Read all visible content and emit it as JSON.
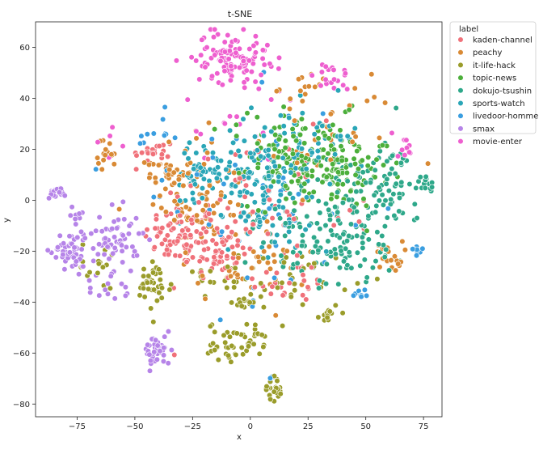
{
  "chart_data": {
    "type": "scatter",
    "title": "t-SNE",
    "xlabel": "x",
    "ylabel": "y",
    "xlim": [
      -93,
      83
    ],
    "ylim": [
      -85,
      70
    ],
    "xticks": [
      -75,
      -50,
      -25,
      0,
      25,
      50,
      75
    ],
    "yticks": [
      -80,
      -60,
      -40,
      -20,
      0,
      20,
      40,
      60
    ],
    "grid": false,
    "legend": {
      "title": "label",
      "placement": "outside-top-right"
    },
    "series": [
      {
        "name": "kaden-channel",
        "color": "#f0717a",
        "clusters": [
          {
            "cx": -30,
            "cy": -14,
            "sx": 8,
            "sy": 6,
            "n": 70
          },
          {
            "cx": -14,
            "cy": -20,
            "sx": 6,
            "sy": 6,
            "n": 50
          },
          {
            "cx": -42,
            "cy": 18,
            "sx": 5,
            "sy": 3,
            "n": 22
          },
          {
            "cx": 18,
            "cy": -32,
            "sx": 8,
            "sy": 4,
            "n": 25
          },
          {
            "cx": -5,
            "cy": -2,
            "sx": 18,
            "sy": 14,
            "n": 50
          },
          {
            "cx": 15,
            "cy": -5,
            "sx": 20,
            "sy": 15,
            "n": 25
          }
        ]
      },
      {
        "name": "peachy",
        "color": "#d98a35",
        "clusters": [
          {
            "cx": -35,
            "cy": 10,
            "sx": 5,
            "sy": 4,
            "n": 35
          },
          {
            "cx": -22,
            "cy": -2,
            "sx": 8,
            "sy": 8,
            "n": 45
          },
          {
            "cx": -62,
            "cy": 18,
            "sx": 2,
            "sy": 3,
            "n": 18
          },
          {
            "cx": 60,
            "cy": -22,
            "sx": 3,
            "sy": 3,
            "n": 20
          },
          {
            "cx": 0,
            "cy": -28,
            "sx": 12,
            "sy": 6,
            "n": 35
          },
          {
            "cx": 35,
            "cy": 28,
            "sx": 15,
            "sy": 12,
            "n": 30
          },
          {
            "cx": 25,
            "cy": 44,
            "sx": 6,
            "sy": 3,
            "n": 12
          },
          {
            "cx": -10,
            "cy": 5,
            "sx": 20,
            "sy": 12,
            "n": 40
          }
        ]
      },
      {
        "name": "it-life-hack",
        "color": "#9a9c2a",
        "clusters": [
          {
            "cx": -42,
            "cy": -34,
            "sx": 4,
            "sy": 5,
            "n": 40
          },
          {
            "cx": -10,
            "cy": -56,
            "sx": 4,
            "sy": 4,
            "n": 30
          },
          {
            "cx": 0,
            "cy": -55,
            "sx": 3,
            "sy": 3,
            "n": 22
          },
          {
            "cx": 10,
            "cy": -74,
            "sx": 2,
            "sy": 2.5,
            "n": 25
          },
          {
            "cx": 34,
            "cy": -44,
            "sx": 2,
            "sy": 2,
            "n": 12
          },
          {
            "cx": 0,
            "cy": -40,
            "sx": 4,
            "sy": 2,
            "n": 15
          },
          {
            "cx": 20,
            "cy": -30,
            "sx": 12,
            "sy": 5,
            "n": 30
          },
          {
            "cx": -65,
            "cy": -25,
            "sx": 4,
            "sy": 5,
            "n": 15
          },
          {
            "cx": -20,
            "cy": -33,
            "sx": 10,
            "sy": 4,
            "n": 20
          }
        ]
      },
      {
        "name": "topic-news",
        "color": "#4caf3b",
        "clusters": [
          {
            "cx": 30,
            "cy": 15,
            "sx": 15,
            "sy": 9,
            "n": 130
          },
          {
            "cx": 10,
            "cy": 20,
            "sx": 10,
            "sy": 8,
            "n": 40
          },
          {
            "cx": 40,
            "cy": 10,
            "sx": 8,
            "sy": 6,
            "n": 30
          }
        ]
      },
      {
        "name": "dokujo-tsushin",
        "color": "#2ea88a",
        "clusters": [
          {
            "cx": 40,
            "cy": -5,
            "sx": 14,
            "sy": 12,
            "n": 110
          },
          {
            "cx": 25,
            "cy": -20,
            "sx": 12,
            "sy": 8,
            "n": 50
          },
          {
            "cx": 62,
            "cy": 10,
            "sx": 6,
            "sy": 6,
            "n": 40
          },
          {
            "cx": 76,
            "cy": 6,
            "sx": 2,
            "sy": 2,
            "n": 15
          },
          {
            "cx": 55,
            "cy": -15,
            "sx": 8,
            "sy": 8,
            "n": 30
          }
        ]
      },
      {
        "name": "sports-watch",
        "color": "#2aa6b7",
        "clusters": [
          {
            "cx": 0,
            "cy": 10,
            "sx": 15,
            "sy": 8,
            "n": 120
          },
          {
            "cx": 25,
            "cy": 25,
            "sx": 12,
            "sy": 7,
            "n": 50
          },
          {
            "cx": -20,
            "cy": 12,
            "sx": 6,
            "sy": 5,
            "n": 30
          },
          {
            "cx": 10,
            "cy": -10,
            "sx": 10,
            "sy": 8,
            "n": 30
          }
        ]
      },
      {
        "name": "livedoor-homme",
        "color": "#3a9ee0",
        "clusters": [
          {
            "cx": 0,
            "cy": 0,
            "sx": 30,
            "sy": 20,
            "n": 50
          },
          {
            "cx": 71,
            "cy": -20,
            "sx": 2,
            "sy": 1.5,
            "n": 10
          },
          {
            "cx": 48,
            "cy": -37,
            "sx": 2,
            "sy": 1,
            "n": 8
          },
          {
            "cx": -40,
            "cy": 25,
            "sx": 5,
            "sy": 3,
            "n": 8
          },
          {
            "cx": 10,
            "cy": -69,
            "sx": 1,
            "sy": 0.5,
            "n": 3
          }
        ]
      },
      {
        "name": "smax",
        "color": "#b684e8",
        "clusters": [
          {
            "cx": -78,
            "cy": -20,
            "sx": 4,
            "sy": 4,
            "n": 55
          },
          {
            "cx": -58,
            "cy": -15,
            "sx": 5,
            "sy": 6,
            "n": 60
          },
          {
            "cx": -40,
            "cy": -59,
            "sx": 3,
            "sy": 3,
            "n": 45
          },
          {
            "cx": -84,
            "cy": 3,
            "sx": 2,
            "sy": 1,
            "n": 18
          },
          {
            "cx": -60,
            "cy": -35,
            "sx": 5,
            "sy": 4,
            "n": 15
          },
          {
            "cx": -75,
            "cy": -5,
            "sx": 3,
            "sy": 3,
            "n": 8
          }
        ]
      },
      {
        "name": "movie-enter",
        "color": "#ee5fcf",
        "clusters": [
          {
            "cx": -8,
            "cy": 56,
            "sx": 8,
            "sy": 5,
            "n": 110
          },
          {
            "cx": 35,
            "cy": 48,
            "sx": 4,
            "sy": 3,
            "n": 20
          },
          {
            "cx": 65,
            "cy": 22,
            "sx": 3,
            "sy": 3,
            "n": 12
          },
          {
            "cx": -60,
            "cy": 20,
            "sx": 3,
            "sy": 3,
            "n": 6
          },
          {
            "cx": 0,
            "cy": 30,
            "sx": 15,
            "sy": 8,
            "n": 15
          }
        ]
      }
    ]
  }
}
